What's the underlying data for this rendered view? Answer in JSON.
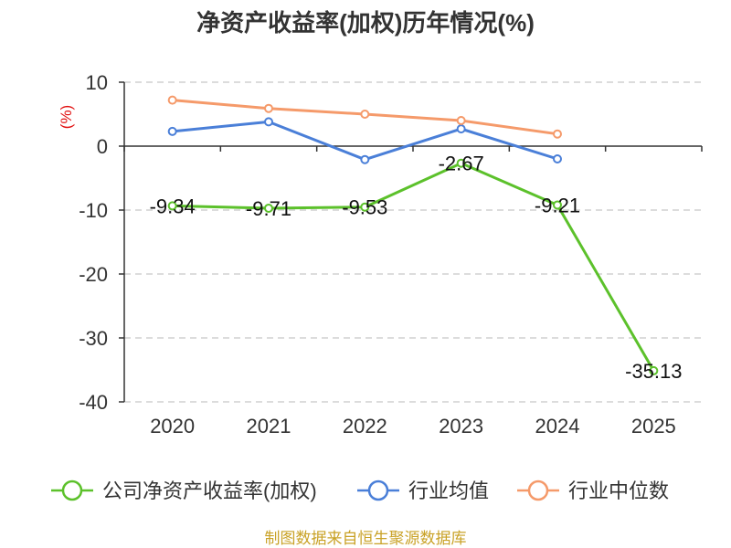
{
  "chart_data": {
    "type": "line",
    "title": "净资产收益率(加权)历年情况(%)",
    "ylabel": "(%)",
    "xlabel": "",
    "categories": [
      "2020",
      "2021",
      "2022",
      "2023",
      "2024",
      "2025"
    ],
    "ylim": [
      -40,
      10
    ],
    "yticks": [
      10,
      0,
      -10,
      -20,
      -30,
      -40
    ],
    "grid": "horizontal dashed",
    "legend_position": "bottom",
    "series": [
      {
        "name": "公司净资产收益率(加权)",
        "color": "#5cc12b",
        "values": [
          -9.34,
          -9.71,
          -9.53,
          -2.67,
          -9.21,
          -35.13
        ],
        "labels": [
          "-9.34",
          "-9.71",
          "-9.53",
          "-2.67",
          "-9.21",
          "-35.13"
        ]
      },
      {
        "name": "行业均值",
        "color": "#4a7fd8",
        "values": [
          2.3,
          3.8,
          -2.1,
          2.7,
          -2.0,
          null
        ]
      },
      {
        "name": "行业中位数",
        "color": "#f59a6a",
        "values": [
          7.2,
          5.9,
          5.0,
          4.0,
          1.9,
          null
        ]
      }
    ]
  },
  "footer": {
    "source": "制图数据来自恒生聚源数据库"
  }
}
